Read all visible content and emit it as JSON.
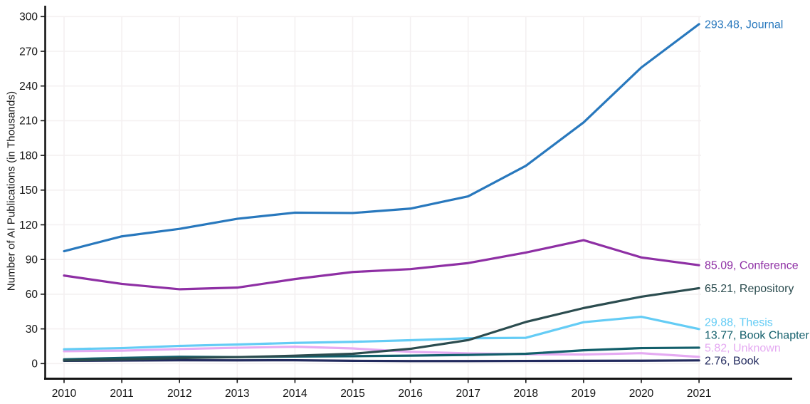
{
  "chart_data": {
    "type": "line",
    "title": "",
    "xlabel": "",
    "ylabel": "Number of AI Publications (in Thousands)",
    "x": [
      2010,
      2011,
      2012,
      2013,
      2014,
      2015,
      2016,
      2017,
      2018,
      2019,
      2020,
      2021
    ],
    "ylim": [
      0,
      300
    ],
    "ytick_step": 30,
    "yticks": [
      0,
      30,
      60,
      90,
      120,
      150,
      180,
      210,
      240,
      270,
      300
    ],
    "grid": true,
    "legend_position": "end-of-line-labels",
    "series": [
      {
        "name": "Journal",
        "color": "#2878bd",
        "end_label": "293.48, Journal",
        "values": [
          97.2,
          110.0,
          116.5,
          125.2,
          130.5,
          130.2,
          134.0,
          144.6,
          171.0,
          208.5,
          256.0,
          293.48
        ]
      },
      {
        "name": "Conference",
        "color": "#8e2fa4",
        "end_label": "85.09, Conference",
        "values": [
          76.1,
          68.9,
          64.3,
          65.7,
          73.1,
          79.2,
          81.7,
          86.9,
          96.0,
          106.7,
          91.8,
          85.09
        ]
      },
      {
        "name": "Repository",
        "color": "#2b4c4f",
        "end_label": "65.21, Repository",
        "values": [
          2.7,
          3.6,
          4.8,
          5.6,
          6.8,
          8.5,
          12.8,
          20.3,
          36.0,
          48.0,
          57.8,
          65.21
        ]
      },
      {
        "name": "Thesis",
        "color": "#64ccf5",
        "end_label": "29.88, Thesis",
        "values": [
          12.4,
          13.4,
          15.3,
          16.5,
          17.9,
          18.8,
          20.2,
          21.9,
          22.3,
          35.8,
          40.5,
          29.88
        ]
      },
      {
        "name": "Book Chapter",
        "color": "#135f6b",
        "end_label": "13.77, Book Chapter",
        "values": [
          3.7,
          4.9,
          5.9,
          5.6,
          6.1,
          6.4,
          6.9,
          7.5,
          8.5,
          11.5,
          13.4,
          13.77
        ]
      },
      {
        "name": "Unknown",
        "color": "#e5aaf2",
        "end_label": "5.82, Unknown",
        "values": [
          10.7,
          11.2,
          12.6,
          13.7,
          14.6,
          13.1,
          10.2,
          8.8,
          8.1,
          7.9,
          9.0,
          5.82
        ]
      },
      {
        "name": "Book",
        "color": "#222a5e",
        "end_label": "2.76, Book",
        "values": [
          2.4,
          2.6,
          2.9,
          2.8,
          2.9,
          2.4,
          2.2,
          2.2,
          2.3,
          2.4,
          2.5,
          2.76
        ]
      }
    ],
    "colors": {
      "axis": "#151515",
      "grid": "#f4f0f1",
      "tick_text": "#151515",
      "background": "#ffffff"
    }
  }
}
